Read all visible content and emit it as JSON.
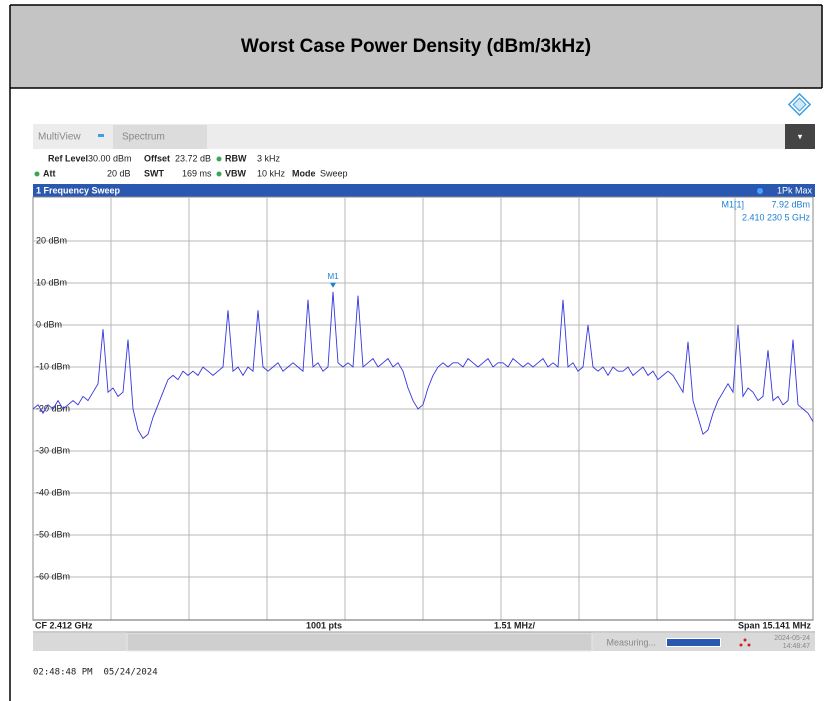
{
  "header": {
    "title": "Worst Case Power Density (dBm/3kHz)"
  },
  "toolbar": {
    "tabs": [
      "MultiView",
      "Spectrum"
    ]
  },
  "settings": {
    "ref_level_label": "Ref Level",
    "ref_level": "30.00 dBm",
    "offset_label": "Offset",
    "offset": "23.72 dB",
    "rbw_label": "RBW",
    "rbw": "3 kHz",
    "att_label": "Att",
    "att": "20 dB",
    "swt_label": "SWT",
    "swt": "169 ms",
    "vbw_label": "VBW",
    "vbw": "10 kHz",
    "mode_label": "Mode",
    "mode": "Sweep"
  },
  "chart_data": {
    "type": "line",
    "title": "1 Frequency Sweep",
    "trace_label": "1Pk Max",
    "color": "#3535e0",
    "grid": true,
    "ylim": [
      -70,
      30
    ],
    "yticks": [
      {
        "value": 20,
        "label": "20 dBm"
      },
      {
        "value": 10,
        "label": "10 dBm"
      },
      {
        "value": 0,
        "label": "0 dBm"
      },
      {
        "value": -10,
        "label": "-10 dBm"
      },
      {
        "value": -20,
        "label": "-20 dBm"
      },
      {
        "value": -30,
        "label": "-30 dBm"
      },
      {
        "value": -40,
        "label": "-40 dBm"
      },
      {
        "value": -50,
        "label": "-50 dBm"
      },
      {
        "value": -60,
        "label": "-60 dBm"
      }
    ],
    "values": [
      -20,
      -19,
      -21,
      -19,
      -20,
      -18,
      -20,
      -19,
      -18,
      -19,
      -17,
      -18,
      -16,
      -14,
      -1,
      -16,
      -15,
      -17,
      -16,
      -3.5,
      -20,
      -25,
      -27,
      -26,
      -22,
      -19,
      -16,
      -13,
      -12,
      -13,
      -11,
      -12,
      -11,
      -12,
      -10,
      -11,
      -12,
      -11,
      -10,
      3.5,
      -11,
      -10,
      -12,
      -10,
      -11,
      3.5,
      -10,
      -11,
      -10,
      -9,
      -11,
      -10,
      -9,
      -10,
      -11,
      6,
      -10,
      -9,
      -11,
      -10,
      7.92,
      -9,
      -10,
      -9,
      -10,
      7,
      -10,
      -9,
      -8,
      -10,
      -9,
      -8,
      -10,
      -9,
      -11,
      -15,
      -18,
      -20,
      -19,
      -15,
      -12,
      -10,
      -9,
      -10,
      -9,
      -9,
      -10,
      -8,
      -9,
      -10,
      -9,
      -8,
      -10,
      -9,
      -9,
      -10,
      -8,
      -9,
      -10,
      -9,
      -10,
      -9,
      -8,
      -10,
      -9,
      -10,
      6,
      -10,
      -9,
      -11,
      -10,
      0,
      -10,
      -11,
      -10,
      -12,
      -10,
      -11,
      -11,
      -10,
      -12,
      -11,
      -10,
      -12,
      -11,
      -13,
      -12,
      -11,
      -12,
      -14,
      -16,
      -4,
      -18,
      -22,
      -26,
      -25,
      -21,
      -18,
      -16,
      -14,
      -16,
      0,
      -17,
      -15,
      -16,
      -18,
      -17,
      -6,
      -18,
      -17,
      -19,
      -18,
      -3.5,
      -19,
      -20,
      -21,
      -23
    ],
    "marker": {
      "name": "M1",
      "table_name": "M1[1]",
      "level": 7.92,
      "level_label": "7.92 dBm",
      "frequency": "2.410 230 5 GHz"
    },
    "footer": {
      "cf": "CF 2.412 GHz",
      "points": "1001 pts",
      "per_div": "1.51 MHz/",
      "span": "Span 15.141 MHz"
    }
  },
  "status": {
    "state": "Measuring...",
    "date": "2024-05-24",
    "time": "14:48:47"
  },
  "timestamp": "02:48:48 PM  05/24/2024"
}
